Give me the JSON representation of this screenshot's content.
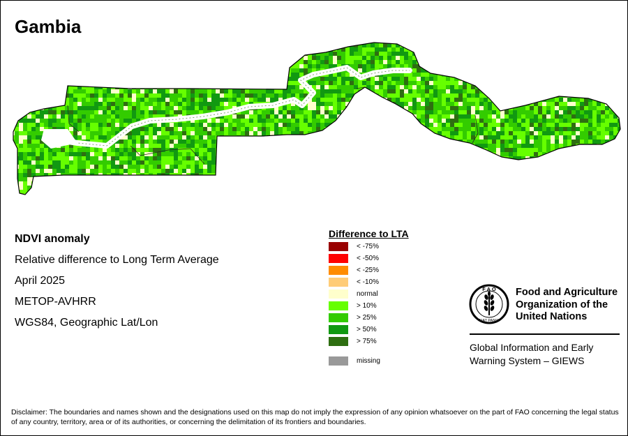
{
  "map": {
    "title": "Gambia",
    "info": {
      "line1": "NDVI anomaly",
      "line2": "Relative difference to Long Term Average",
      "line3": "April 2025",
      "line4": "METOP-AVHRR",
      "line5": "WGS84, Geographic Lat/Lon"
    },
    "legend": {
      "title": "Difference to LTA",
      "items": [
        {
          "label": "< -75%",
          "color": "#990000"
        },
        {
          "label": "< -50%",
          "color": "#ff0000"
        },
        {
          "label": "< -25%",
          "color": "#ff8c00"
        },
        {
          "label": "< -10%",
          "color": "#ffcc77"
        },
        {
          "label": "normal",
          "color": "#ffffcc"
        },
        {
          "label": "> 10%",
          "color": "#66ff00"
        },
        {
          "label": "> 25%",
          "color": "#33cc00"
        },
        {
          "label": "> 50%",
          "color": "#119911"
        },
        {
          "label": "> 75%",
          "color": "#2e6e11"
        },
        {
          "label": "missing",
          "color": "#999999"
        }
      ]
    },
    "colors": {
      "land_base": "#44cc00",
      "river": "#ffffff",
      "boundary": "#000000"
    }
  },
  "fao": {
    "logo_letters": "F A O",
    "logo_motto": "FIAT PANIS",
    "name_line1": "Food and Agriculture",
    "name_line2": "Organization of the",
    "name_line3": "United Nations",
    "giews_line1": "Global Information and Early",
    "giews_line2": "Warning System – GIEWS"
  },
  "disclaimer": "Disclaimer: The boundaries and names shown and the designations used on this map do not imply the expression of any opinion whatsoever on the part of FAO concerning the legal status of any country, territory, area or of its authorities, or concerning the delimitation of its frontiers and boundaries."
}
